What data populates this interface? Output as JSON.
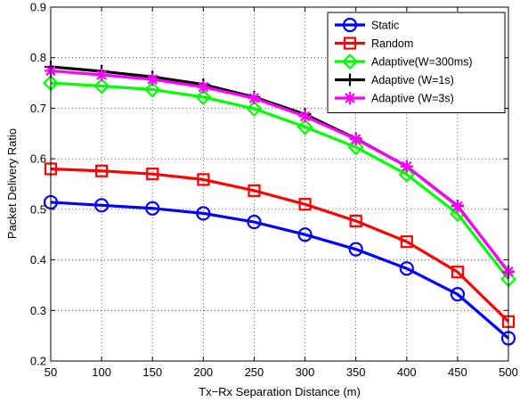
{
  "chart_data": {
    "type": "line",
    "title": "",
    "xlabel": "Tx−Rx Separation Distance (m)",
    "ylabel": "Packet Delivery Ratio",
    "x": [
      50,
      100,
      150,
      200,
      250,
      300,
      350,
      400,
      450,
      500
    ],
    "xlim": [
      50,
      500
    ],
    "ylim": [
      0.2,
      0.9
    ],
    "xticks": [
      "50",
      "100",
      "150",
      "200",
      "250",
      "300",
      "350",
      "400",
      "450",
      "500"
    ],
    "yticks": [
      "0.2",
      "0.3",
      "0.4",
      "0.5",
      "0.6",
      "0.7",
      "0.8",
      "0.9"
    ],
    "grid": true,
    "legend_position": "top-right",
    "series": [
      {
        "name": "Static",
        "color": "#0000ff",
        "marker": "circle",
        "values": [
          0.514,
          0.508,
          0.502,
          0.492,
          0.475,
          0.45,
          0.421,
          0.383,
          0.332,
          0.245
        ]
      },
      {
        "name": "Random",
        "color": "#ff0000",
        "marker": "square",
        "values": [
          0.58,
          0.576,
          0.57,
          0.559,
          0.537,
          0.51,
          0.477,
          0.436,
          0.376,
          0.278
        ]
      },
      {
        "name": "Adaptive(W=300ms)",
        "color": "#00ff00",
        "marker": "diamond",
        "values": [
          0.75,
          0.744,
          0.737,
          0.722,
          0.699,
          0.663,
          0.623,
          0.569,
          0.491,
          0.362
        ]
      },
      {
        "name": "Adaptive (W=1s)",
        "color": "#000000",
        "marker": "plus",
        "values": [
          0.782,
          0.773,
          0.762,
          0.747,
          0.722,
          0.688,
          0.64,
          0.585,
          0.507,
          0.376
        ]
      },
      {
        "name": "Adaptive (W=3s)",
        "color": "#ff00ff",
        "marker": "star",
        "values": [
          0.774,
          0.766,
          0.757,
          0.742,
          0.72,
          0.684,
          0.639,
          0.585,
          0.506,
          0.377
        ]
      }
    ]
  }
}
